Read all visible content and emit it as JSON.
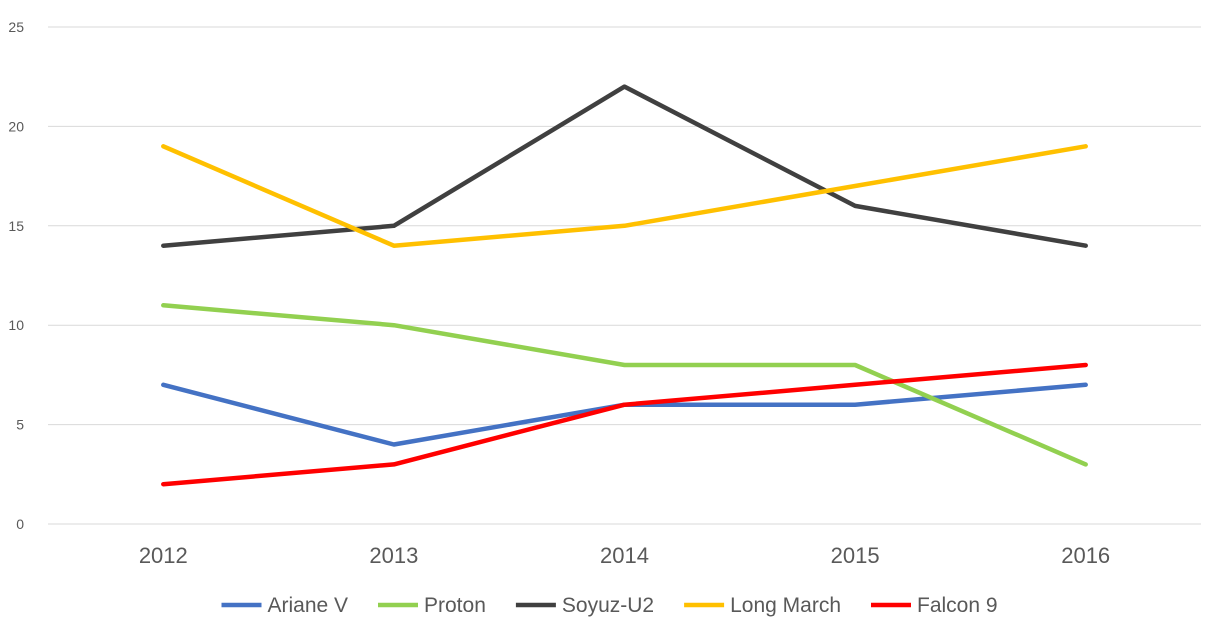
{
  "chart_data": {
    "type": "line",
    "title": "",
    "xlabel": "",
    "ylabel": "",
    "categories": [
      "2012",
      "2013",
      "2014",
      "2015",
      "2016"
    ],
    "ylim": [
      0,
      25
    ],
    "yticks": [
      0,
      5,
      10,
      15,
      20,
      25
    ],
    "grid": true,
    "legend": "bottom",
    "series": [
      {
        "name": "Ariane V",
        "color": "#4472c4",
        "values": [
          7,
          4,
          6,
          6,
          7
        ]
      },
      {
        "name": "Proton",
        "color": "#92d050",
        "values": [
          11,
          10,
          8,
          8,
          3
        ]
      },
      {
        "name": "Soyuz-U2",
        "color": "#404040",
        "values": [
          14,
          15,
          22,
          16,
          14
        ]
      },
      {
        "name": "Long March",
        "color": "#ffc000",
        "values": [
          19,
          14,
          15,
          17,
          19
        ]
      },
      {
        "name": "Falcon 9",
        "color": "#ff0000",
        "values": [
          2,
          3,
          6,
          7,
          8
        ]
      }
    ]
  }
}
